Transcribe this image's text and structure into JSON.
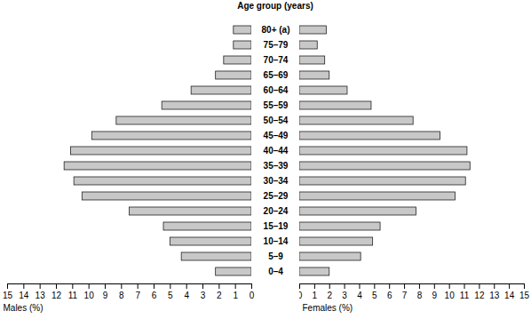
{
  "chart_data": [
    {
      "type": "bar",
      "orientation": "horizontal",
      "ylabel": "Age group (years)",
      "xlabel": "Males (%)",
      "categories": [
        "80+ (a)",
        "75–79",
        "70–74",
        "65–69",
        "60–64",
        "55–59",
        "50–54",
        "45–49",
        "40–44",
        "35–39",
        "30–34",
        "25–29",
        "20–24",
        "15–19",
        "10–14",
        "5–9",
        "0–4"
      ],
      "values": [
        1.1,
        1.1,
        1.7,
        2.2,
        3.7,
        5.5,
        8.3,
        9.8,
        11.1,
        11.5,
        10.9,
        10.4,
        7.5,
        5.4,
        5.0,
        4.3,
        2.2
      ],
      "color": "#c8c8c8",
      "xlim": [
        15,
        0
      ],
      "xticks": [
        15,
        14,
        13,
        12,
        11,
        10,
        9,
        8,
        7,
        6,
        5,
        4,
        3,
        2,
        1,
        0
      ]
    },
    {
      "type": "bar",
      "orientation": "horizontal",
      "xlabel": "Females (%)",
      "categories": [
        "80+ (a)",
        "75–79",
        "70–74",
        "65–69",
        "60–64",
        "55–59",
        "50–54",
        "45–49",
        "40–44",
        "35–39",
        "30–34",
        "25–29",
        "20–24",
        "15–19",
        "10–14",
        "5–9",
        "0–4"
      ],
      "values": [
        1.8,
        1.2,
        1.7,
        2.0,
        3.2,
        4.8,
        7.6,
        9.4,
        11.2,
        11.4,
        11.1,
        10.4,
        7.8,
        5.4,
        4.9,
        4.1,
        2.0
      ],
      "color": "#c8c8c8",
      "xlim": [
        0,
        15
      ],
      "xticks": [
        0,
        1,
        2,
        3,
        4,
        5,
        6,
        7,
        8,
        9,
        10,
        11,
        12,
        13,
        14,
        15
      ]
    }
  ]
}
